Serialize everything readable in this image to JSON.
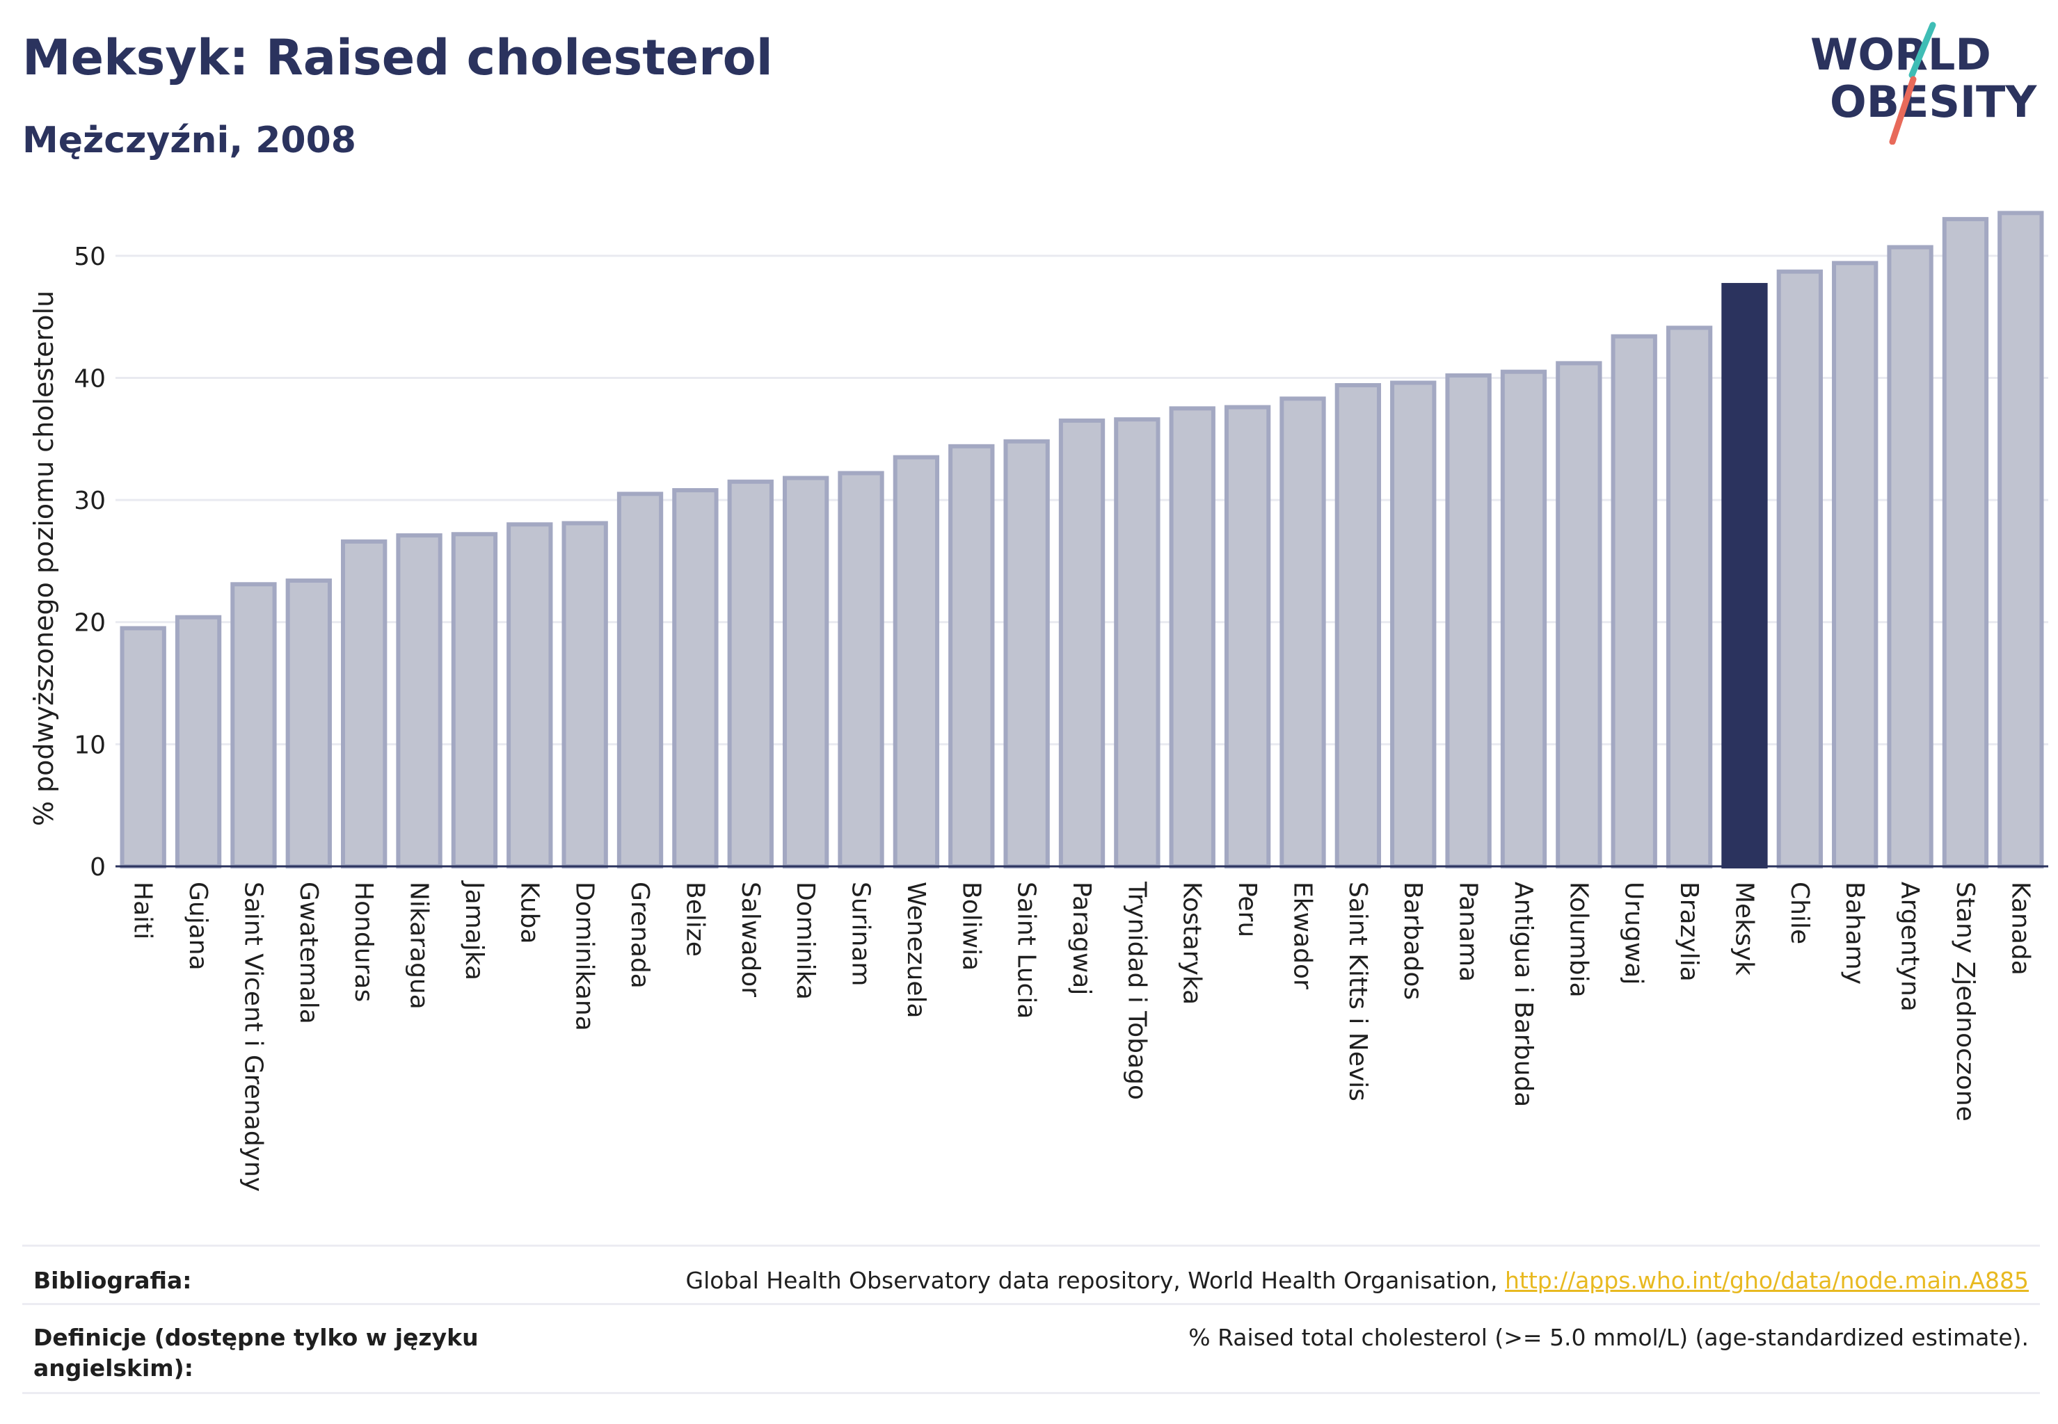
{
  "header": {
    "title": "Meksyk: Raised cholesterol",
    "subtitle": "Mężczyźni, 2008"
  },
  "logo": {
    "line1": "WORLD",
    "line2": "OBESITY"
  },
  "colors": {
    "highlight": "#2b335e",
    "bar_fill": "#c0c3d0",
    "bar_stroke": "#a3a8c2",
    "text": "#2b335e",
    "link": "#e8b920",
    "logo_teal": "#3fbdb5",
    "logo_coral": "#e86a5a"
  },
  "chart_data": {
    "type": "bar",
    "title": "Meksyk: Raised cholesterol",
    "subtitle": "Mężczyźni, 2008",
    "ylabel": "% podwyższonego poziomu cholesterolu",
    "xlabel": "",
    "ylim": [
      0,
      55
    ],
    "yticks": [
      0,
      10,
      20,
      30,
      40,
      50
    ],
    "grid": true,
    "highlight": "Meksyk",
    "categories": [
      "Haiti",
      "Gujana",
      "Saint Vicent i Grenadyny",
      "Gwatemala",
      "Honduras",
      "Nikaragua",
      "Jamajka",
      "Kuba",
      "Dominikana",
      "Grenada",
      "Belize",
      "Salwador",
      "Dominika",
      "Surinam",
      "Wenezuela",
      "Boliwia",
      "Saint Lucia",
      "Paragwaj",
      "Trynidad i Tobago",
      "Kostaryka",
      "Peru",
      "Ekwador",
      "Saint Kitts i Nevis",
      "Barbados",
      "Panama",
      "Antigua i Barbuda",
      "Kolumbia",
      "Urugwaj",
      "Brazylia",
      "Meksyk",
      "Chile",
      "Bahamy",
      "Argentyna",
      "Stany Zjednoczone",
      "Kanada"
    ],
    "values": [
      19.5,
      20.4,
      23.1,
      23.4,
      26.6,
      27.1,
      27.2,
      28.0,
      28.1,
      30.5,
      30.8,
      31.5,
      31.8,
      32.2,
      33.5,
      34.4,
      34.8,
      36.5,
      36.6,
      37.5,
      37.6,
      38.3,
      39.4,
      39.6,
      40.2,
      40.5,
      41.2,
      43.4,
      44.1,
      47.6,
      48.7,
      49.4,
      50.7,
      53.0,
      53.5
    ]
  },
  "footer": {
    "bibliography_label": "Bibliografia:",
    "bibliography_text": "Global Health Observatory data repository, World Health Organisation, ",
    "bibliography_link": "http://apps.who.int/gho/data/node.main.A885",
    "definitions_label": "Definicje (dostępne tylko w języku angielskim):",
    "definitions_text": "% Raised total cholesterol (>= 5.0 mmol/L) (age-standardized estimate)."
  }
}
